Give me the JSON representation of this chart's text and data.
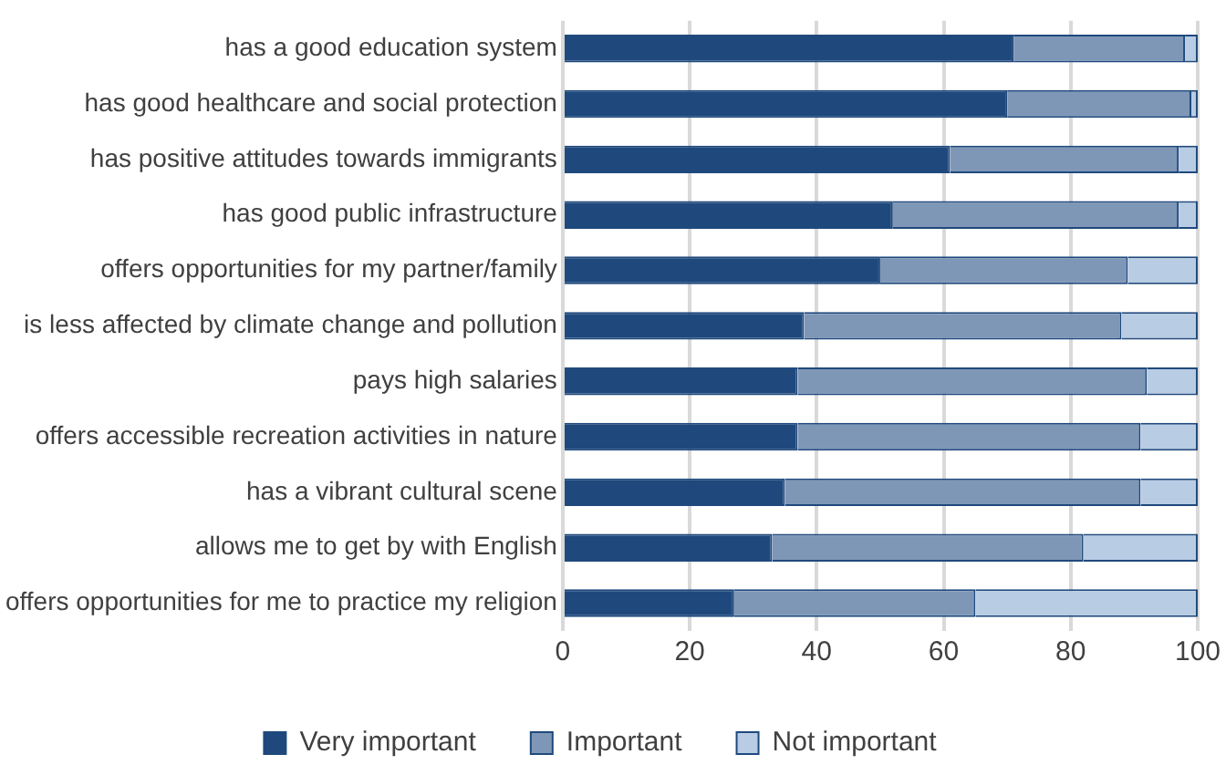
{
  "chart_data": {
    "type": "bar",
    "orientation": "horizontal",
    "stacked": true,
    "categories": [
      "has a good education system",
      "has good healthcare and social protection",
      "has positive attitudes towards immigrants",
      "has good public infrastructure",
      "offers opportunities for my partner/family",
      "is less affected by climate change and pollution",
      "pays high salaries",
      "offers accessible recreation activities in nature",
      "has a vibrant cultural scene",
      "allows me to get by with English",
      "offers opportunities for me to practice my religion"
    ],
    "series": [
      {
        "name": "Very important",
        "color": "#1f497d",
        "values": [
          71,
          70,
          61,
          52,
          50,
          38,
          37,
          37,
          35,
          33,
          27
        ]
      },
      {
        "name": "Important",
        "color": "#7f97b6",
        "values": [
          27,
          29,
          36,
          45,
          39,
          50,
          55,
          54,
          56,
          49,
          38
        ]
      },
      {
        "name": "Not important",
        "color": "#b8cce4",
        "values": [
          2,
          1,
          3,
          3,
          11,
          12,
          8,
          9,
          9,
          18,
          35
        ]
      }
    ],
    "xlim": [
      0,
      100
    ],
    "xticks": [
      0,
      20,
      40,
      60,
      80,
      100
    ],
    "grid": "x",
    "legend": "bottom"
  }
}
